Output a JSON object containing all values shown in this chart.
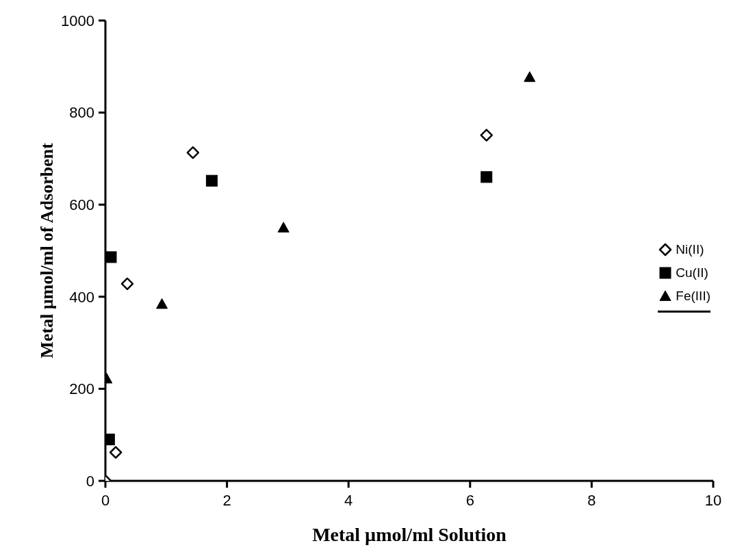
{
  "chart_data": {
    "type": "scatter",
    "xlabel": "Metal µmol/ml Solution",
    "ylabel": "Metal µmol/ml of Adsorbent",
    "xlim": [
      0,
      10
    ],
    "xticks": [
      0,
      2,
      4,
      6,
      8,
      10
    ],
    "ylim": [
      0,
      1000
    ],
    "yticks": [
      0,
      200,
      400,
      600,
      800,
      1000
    ],
    "grid": false,
    "legend": "right",
    "series": [
      {
        "name": "Ni(II)",
        "color": "#000000",
        "marker": "diamond",
        "x": [
          0,
          0.17,
          0.36,
          1.44,
          6.27
        ],
        "values": [
          0,
          62,
          428,
          713,
          751
        ]
      },
      {
        "name": "Cu(II)",
        "color": "#000000",
        "marker": "square",
        "x": [
          0.06,
          0.09,
          1.75,
          6.27
        ],
        "values": [
          90,
          486,
          652,
          660
        ]
      },
      {
        "name": "Fe(III)",
        "color": "#000000",
        "marker": "triangle",
        "x": [
          0.02,
          0.93,
          2.93,
          6.98
        ],
        "values": [
          222,
          384,
          550,
          877
        ]
      }
    ]
  }
}
